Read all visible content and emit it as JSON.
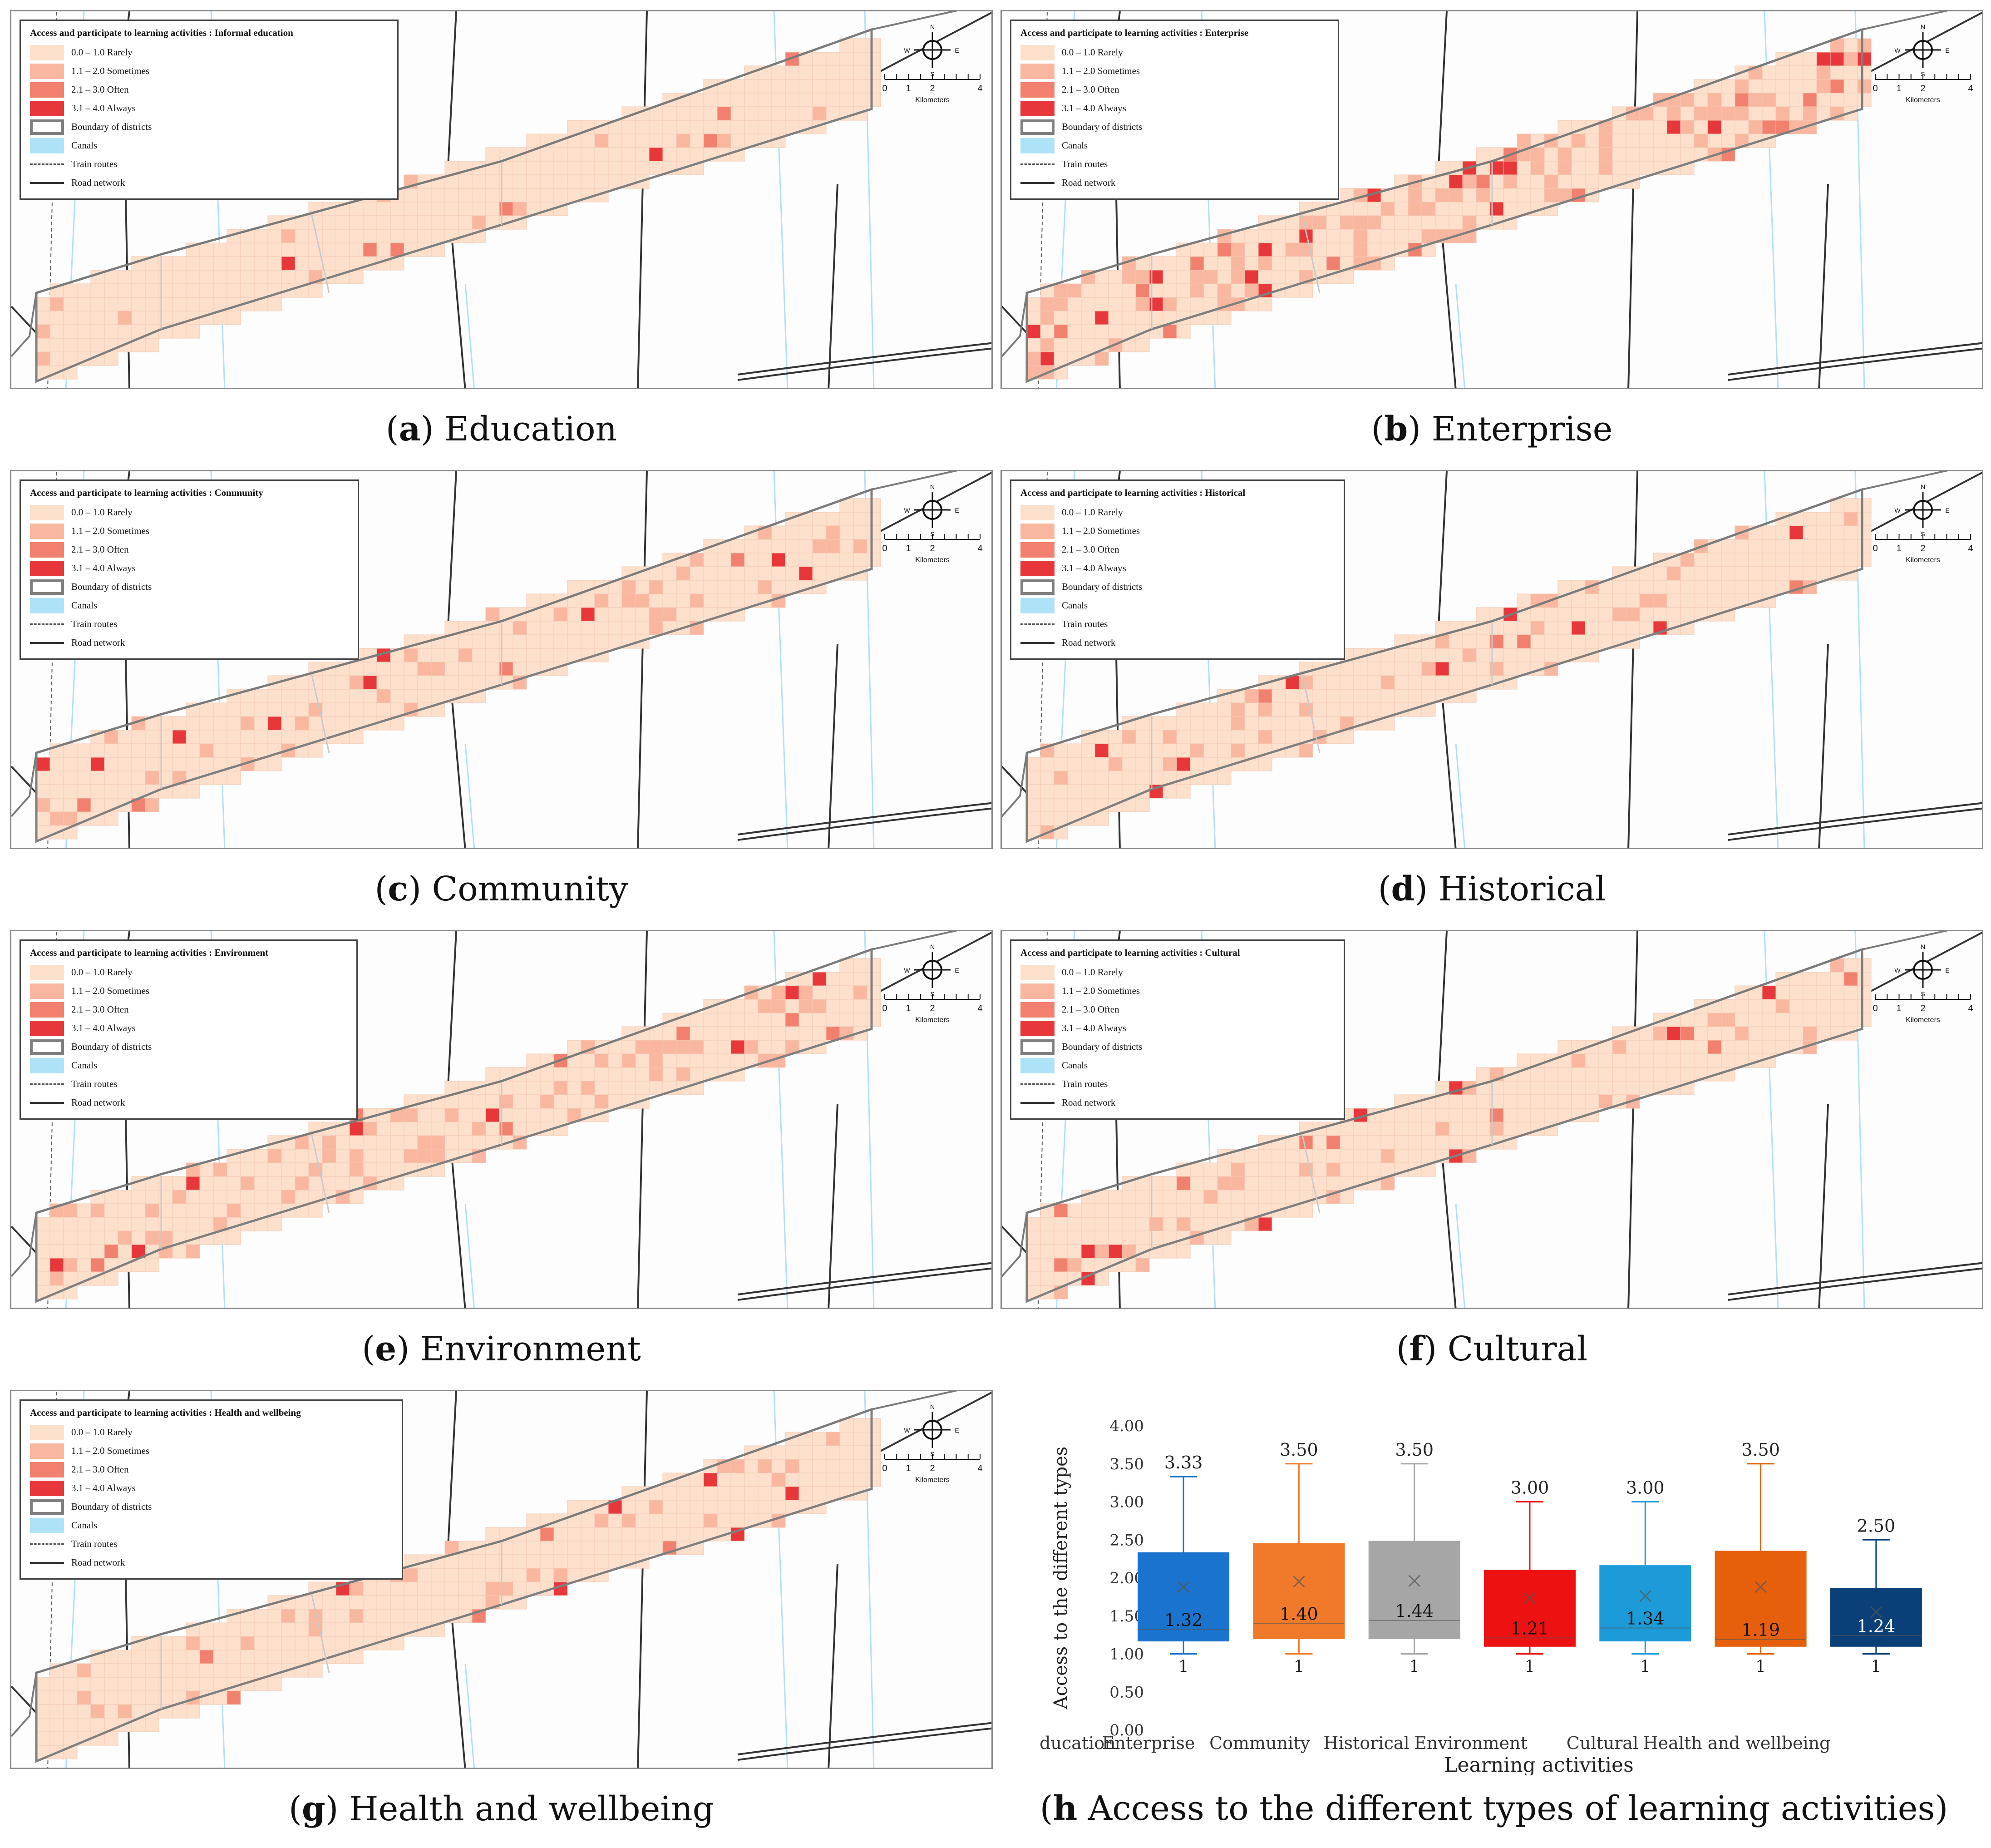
{
  "legend": {
    "items": [
      {
        "label": "0.0 – 1.0 Rarely",
        "color": "#fde0cc"
      },
      {
        "label": "1.1 – 2.0 Sometimes",
        "color": "#f9b7a0"
      },
      {
        "label": "2.1 – 3.0 Often",
        "color": "#f1816e"
      },
      {
        "label": "3.1 – 4.0 Always",
        "color": "#e8373a"
      },
      {
        "label": "Boundary of districts",
        "color": "#7f7f7f"
      },
      {
        "label": "Canals",
        "color": "#aee2f6"
      },
      {
        "label": "Train routes",
        "color": "#555555"
      },
      {
        "label": "Road network",
        "color": "#333333"
      }
    ]
  },
  "compass": {
    "n": "N",
    "s": "S",
    "e": "E",
    "w": "W"
  },
  "scalebar": {
    "ticks": [
      "0",
      "1",
      "2",
      "4"
    ],
    "unit": "Kilometers"
  },
  "panels": [
    {
      "title": "Access and participate to learning activities : Informal education",
      "letter": "a",
      "caption": " Education"
    },
    {
      "title": "Access and participate to learning activities : Enterprise",
      "letter": "b",
      "caption": " Enterprise"
    },
    {
      "title": "Access and participate to learning activities : Community",
      "letter": "c",
      "caption": " Community"
    },
    {
      "title": "Access and participate to learning activities : Historical",
      "letter": "d",
      "caption": " Historical"
    },
    {
      "title": "Access and participate to learning activities : Environment",
      "letter": "e",
      "caption": " Environment"
    },
    {
      "title": "Access and participate to learning activities : Cultural",
      "letter": "f",
      "caption": " Cultural"
    },
    {
      "title": "Access and participate to learning activities : Health and wellbeing",
      "letter": "g",
      "caption": " Health and wellbeing"
    }
  ],
  "h_caption": {
    "letter": "h",
    "text": " Access to the different types of learning activities"
  },
  "chart_data": {
    "type": "boxplot",
    "xlabel": "Learning activities",
    "ylabel": "Access to the different types",
    "ylim": [
      0,
      4
    ],
    "yticks": [
      "0.00",
      "0.50",
      "1.00",
      "1.50",
      "2.00",
      "2.50",
      "3.00",
      "3.50",
      "4.00"
    ],
    "categories": [
      "Education",
      "Enterprise",
      "Community",
      "Historical",
      "Environment",
      "Cultural",
      "Health and wellbeing"
    ],
    "boxes": [
      {
        "name": "Education",
        "min": 1,
        "q1": 1.17,
        "median": 1.32,
        "q3": 2.33,
        "max": 3.33,
        "mean": 1.88,
        "median_label": "1.32",
        "max_label": "3.33",
        "min_label": "1",
        "color": "#1a73cc"
      },
      {
        "name": "Enterprise",
        "min": 1,
        "q1": 1.2,
        "median": 1.4,
        "q3": 2.45,
        "max": 3.5,
        "mean": 1.95,
        "median_label": "1.40",
        "max_label": "3.50",
        "min_label": "1",
        "color": "#f07a2a"
      },
      {
        "name": "Community",
        "min": 1,
        "q1": 1.2,
        "median": 1.44,
        "q3": 2.48,
        "max": 3.5,
        "mean": 1.96,
        "median_label": "1.44",
        "max_label": "3.50",
        "min_label": "1",
        "color": "#a6a6a6"
      },
      {
        "name": "Historical",
        "min": 1,
        "q1": 1.1,
        "median": 1.21,
        "q3": 2.1,
        "max": 3.0,
        "mean": 1.73,
        "median_label": "1.21",
        "max_label": "3.00",
        "min_label": "1",
        "color": "#ee1111"
      },
      {
        "name": "Environment",
        "min": 1,
        "q1": 1.17,
        "median": 1.34,
        "q3": 2.16,
        "max": 3.0,
        "mean": 1.76,
        "median_label": "1.34",
        "max_label": "3.00",
        "min_label": "1",
        "color": "#1d9bd9"
      },
      {
        "name": "Cultural",
        "min": 1,
        "q1": 1.1,
        "median": 1.19,
        "q3": 2.35,
        "max": 3.5,
        "mean": 1.88,
        "median_label": "1.19",
        "max_label": "3.50",
        "min_label": "1",
        "color": "#e65f0c"
      },
      {
        "name": "Health and wellbeing",
        "min": 1,
        "q1": 1.1,
        "median": 1.24,
        "q3": 1.86,
        "max": 2.5,
        "mean": 1.55,
        "median_label": "1.24",
        "max_label": "2.50",
        "min_label": "1",
        "color": "#0a3f78"
      }
    ]
  }
}
